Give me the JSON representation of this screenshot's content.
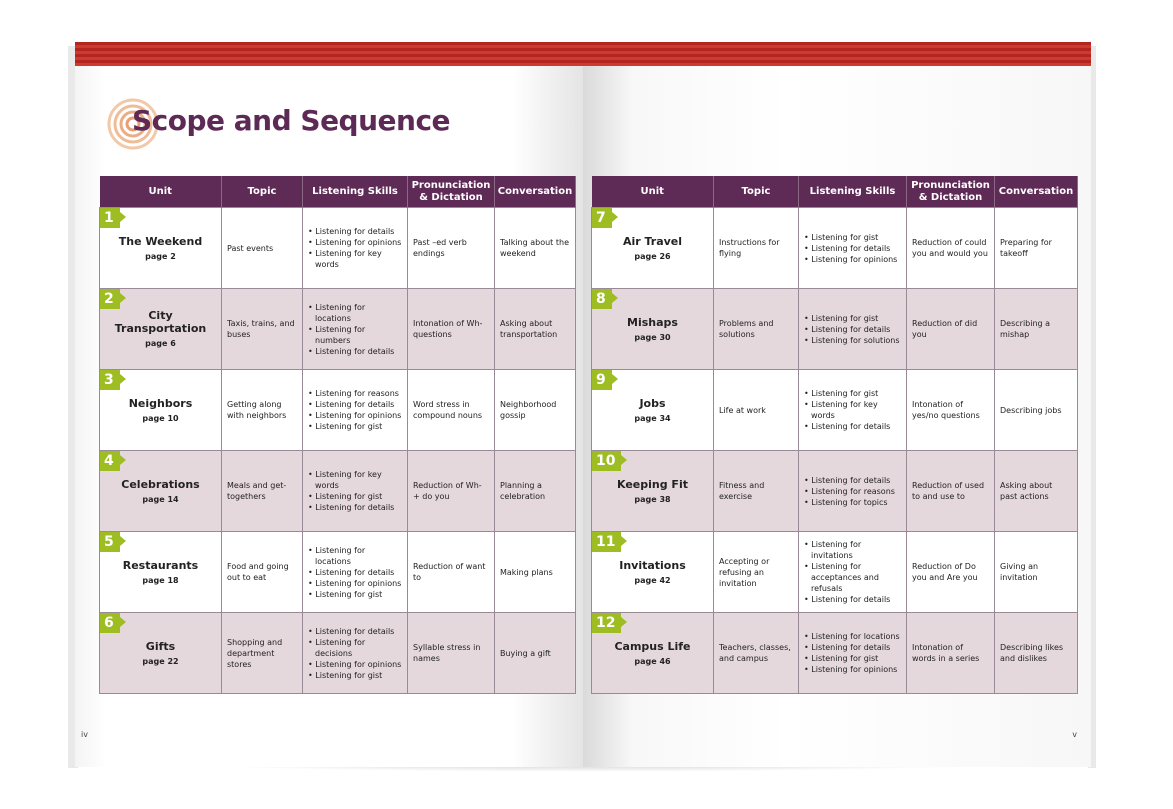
{
  "header": {
    "title": "Scope and Sequence"
  },
  "columns": [
    "Unit",
    "Topic",
    "Listening Skills",
    "Pronunciation & Dictation",
    "Conversation"
  ],
  "units_left": [
    {
      "num": "1",
      "name": "The Weekend",
      "page": "page 2",
      "topic": "Past events",
      "skills": [
        "Listening for details",
        "Listening for opinions",
        "Listening for key words"
      ],
      "pron": "Past –ed verb endings",
      "conv": "Talking about the weekend"
    },
    {
      "num": "2",
      "name": "City Transportation",
      "page": "page 6",
      "topic": "Taxis, trains, and buses",
      "skills": [
        "Listening for locations",
        "Listening for numbers",
        "Listening for details"
      ],
      "pron": "Intonation of Wh- questions",
      "conv": "Asking about transportation"
    },
    {
      "num": "3",
      "name": "Neighbors",
      "page": "page 10",
      "topic": "Getting along with neighbors",
      "skills": [
        "Listening for reasons",
        "Listening for details",
        "Listening for opinions",
        "Listening for gist"
      ],
      "pron": "Word stress in compound nouns",
      "conv": "Neighborhood gossip"
    },
    {
      "num": "4",
      "name": "Celebrations",
      "page": "page 14",
      "topic": "Meals and get-togethers",
      "skills": [
        "Listening for key words",
        "Listening for gist",
        "Listening for details"
      ],
      "pron": "Reduction of Wh- + do you",
      "conv": "Planning a celebration"
    },
    {
      "num": "5",
      "name": "Restaurants",
      "page": "page 18",
      "topic": "Food and going out to eat",
      "skills": [
        "Listening for locations",
        "Listening for details",
        "Listening for opinions",
        "Listening for gist"
      ],
      "pron": "Reduction of want to",
      "conv": "Making plans"
    },
    {
      "num": "6",
      "name": "Gifts",
      "page": "page 22",
      "topic": "Shopping and department stores",
      "skills": [
        "Listening for details",
        "Listening for decisions",
        "Listening for opinions",
        "Listening for gist"
      ],
      "pron": "Syllable stress in names",
      "conv": "Buying a gift"
    }
  ],
  "units_right": [
    {
      "num": "7",
      "name": "Air Travel",
      "page": "page 26",
      "topic": "Instructions for flying",
      "skills": [
        "Listening for gist",
        "Listening for details",
        "Listening for opinions"
      ],
      "pron": "Reduction of could you and would you",
      "conv": "Preparing for takeoff"
    },
    {
      "num": "8",
      "name": "Mishaps",
      "page": "page 30",
      "topic": "Problems and solutions",
      "skills": [
        "Listening for gist",
        "Listening for details",
        "Listening for solutions"
      ],
      "pron": "Reduction of did you",
      "conv": "Describing a mishap"
    },
    {
      "num": "9",
      "name": "Jobs",
      "page": "page 34",
      "topic": "Life at work",
      "skills": [
        "Listening for gist",
        "Listening for key words",
        "Listening for details"
      ],
      "pron": "Intonation of yes/no questions",
      "conv": "Describing jobs"
    },
    {
      "num": "10",
      "name": "Keeping Fit",
      "page": "page 38",
      "topic": "Fitness and exercise",
      "skills": [
        "Listening for details",
        "Listening for reasons",
        "Listening for topics"
      ],
      "pron": "Reduction of used to and use to",
      "conv": "Asking about past actions"
    },
    {
      "num": "11",
      "name": "Invitations",
      "page": "page 42",
      "topic": "Accepting or refusing an invitation",
      "skills": [
        "Listening for invitations",
        "Listening for acceptances and refusals",
        "Listening for details"
      ],
      "pron": "Reduction of Do you and Are you",
      "conv": "Giving an invitation"
    },
    {
      "num": "12",
      "name": "Campus Life",
      "page": "page 46",
      "topic": "Teachers, classes, and campus",
      "skills": [
        "Listening for locations",
        "Listening for details",
        "Listening for gist",
        "Listening for opinions"
      ],
      "pron": "Intonation of words in a series",
      "conv": "Describing likes and dislikes"
    }
  ],
  "page_numbers": {
    "left": "iv",
    "right": "v"
  },
  "colors": {
    "header": "#5e2a56",
    "accent": "#9ebd23",
    "stripe": "#b3261f",
    "title": "#5d2a55",
    "shade": "#e5d8dc"
  }
}
